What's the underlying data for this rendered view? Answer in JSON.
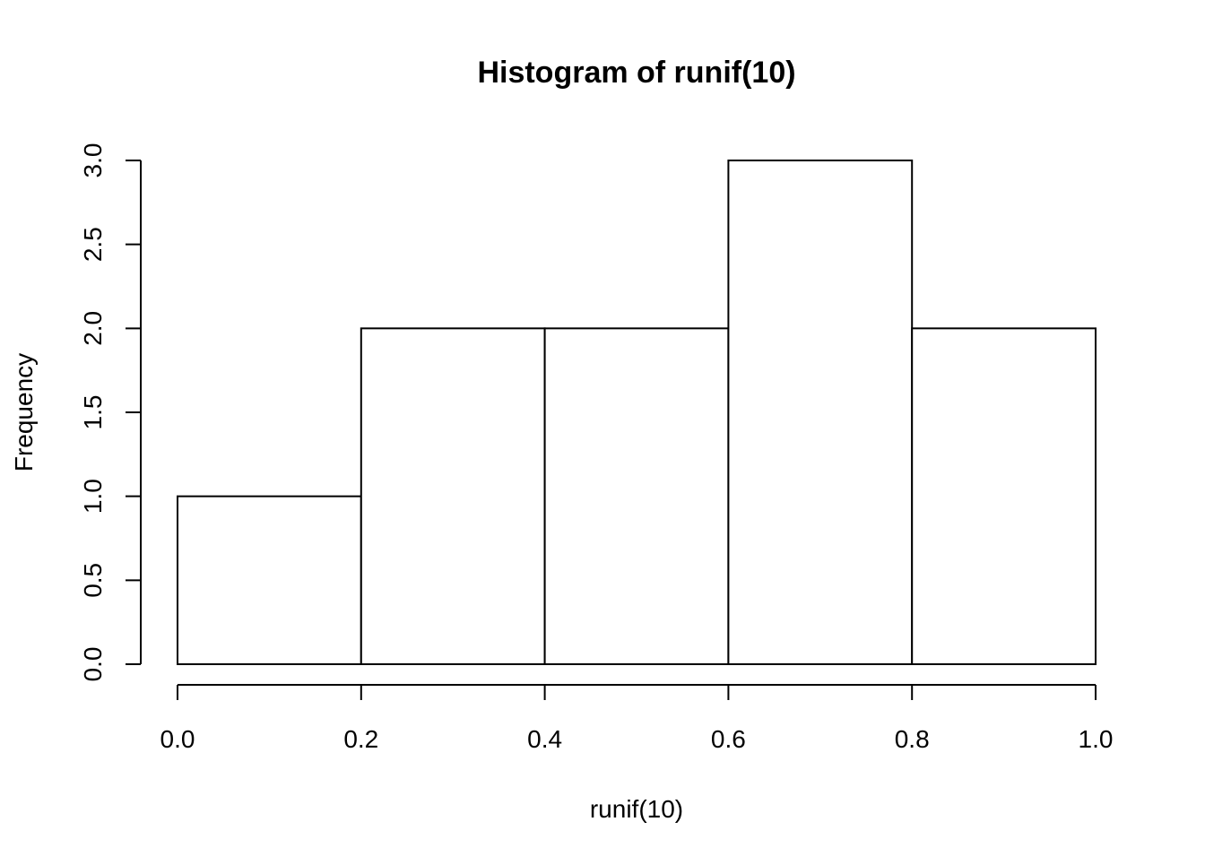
{
  "chart_data": {
    "type": "bar",
    "title": "Histogram of runif(10)",
    "xlabel": "runif(10)",
    "ylabel": "Frequency",
    "bins": [
      {
        "from": 0.0,
        "to": 0.2,
        "count": 1
      },
      {
        "from": 0.2,
        "to": 0.4,
        "count": 2
      },
      {
        "from": 0.4,
        "to": 0.6,
        "count": 2
      },
      {
        "from": 0.6,
        "to": 0.8,
        "count": 3
      },
      {
        "from": 0.8,
        "to": 1.0,
        "count": 2
      }
    ],
    "xlim": [
      0,
      1
    ],
    "ylim": [
      0,
      3
    ],
    "x_ticks": [
      "0.0",
      "0.2",
      "0.4",
      "0.6",
      "0.8",
      "1.0"
    ],
    "y_ticks": [
      "0.0",
      "0.5",
      "1.0",
      "1.5",
      "2.0",
      "2.5",
      "3.0"
    ],
    "grid": false,
    "bar_fill": "#ffffff",
    "bar_stroke": "#000000"
  }
}
